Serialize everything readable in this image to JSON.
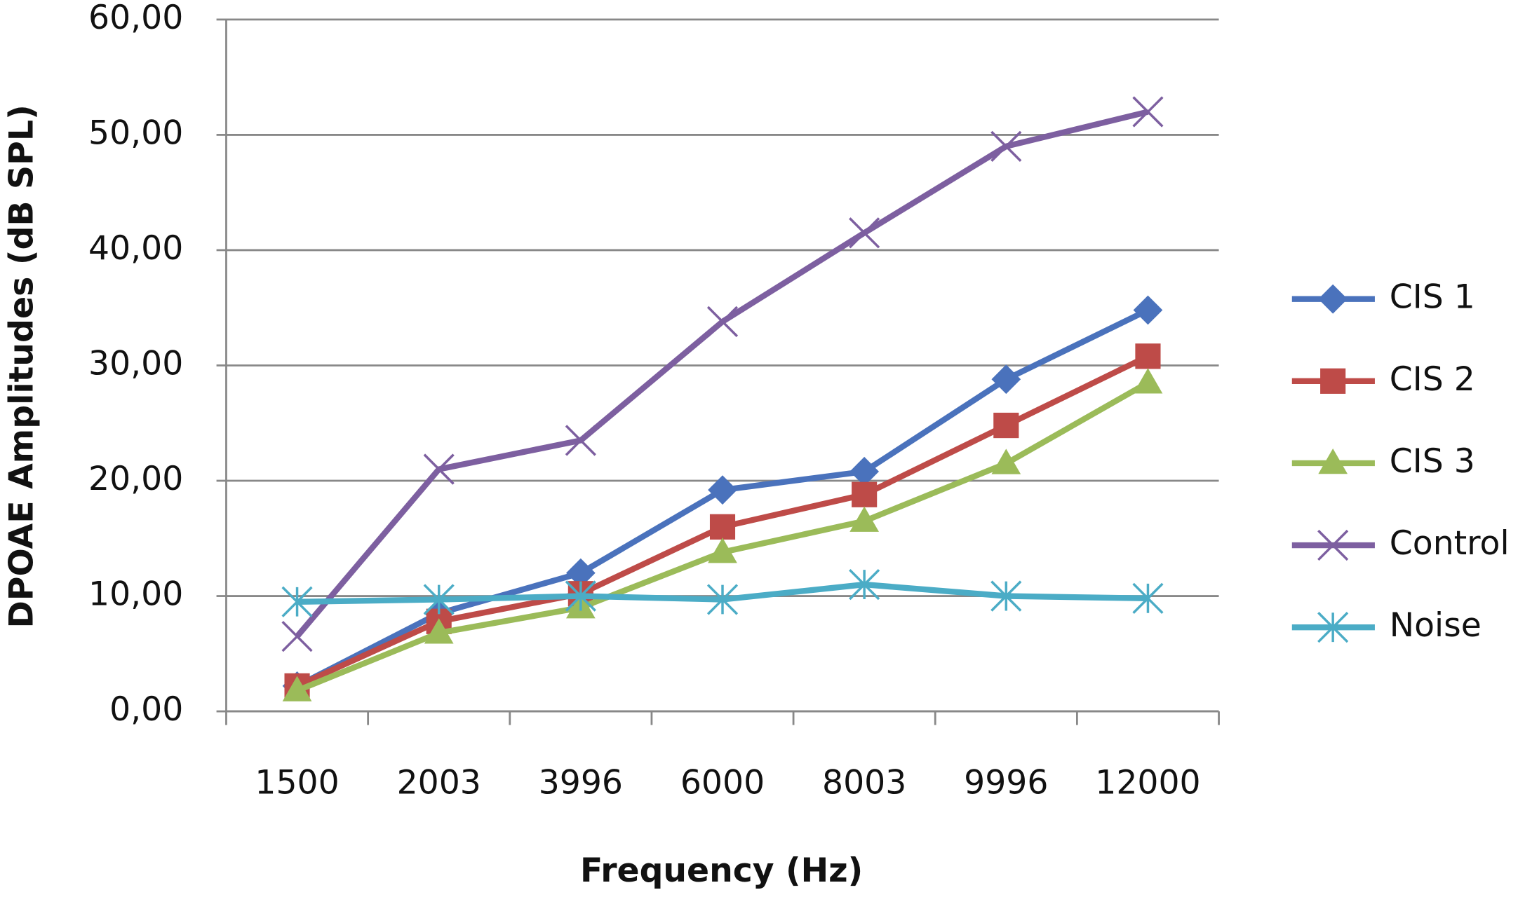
{
  "chart_data": {
    "type": "line",
    "x_label": "Frequency (Hz)",
    "y_label": "DPOAE Amplitudes  (dB SPL)",
    "categories": [
      "1500",
      "2003",
      "3996",
      "6000",
      "8003",
      "9996",
      "12000"
    ],
    "series": [
      {
        "name": "CIS 1",
        "color": "#4a72bc",
        "marker": "diamond",
        "values": [
          2.2,
          8.5,
          12,
          19.2,
          20.8,
          28.8,
          34.8
        ]
      },
      {
        "name": "CIS 2",
        "color": "#be4b48",
        "marker": "square",
        "values": [
          2.2,
          7.8,
          10.2,
          16,
          18.8,
          24.8,
          30.8
        ]
      },
      {
        "name": "CIS 3",
        "color": "#9bbb59",
        "marker": "triangle",
        "values": [
          1.8,
          6.8,
          9,
          13.8,
          16.5,
          21.5,
          28.5
        ]
      },
      {
        "name": "Control",
        "color": "#7d5fa0",
        "marker": "x",
        "values": [
          6.5,
          21,
          23.5,
          33.8,
          41.5,
          49,
          52
        ]
      },
      {
        "name": "Noise",
        "color": "#4bacc6",
        "marker": "star",
        "values": [
          9.5,
          9.7,
          10,
          9.7,
          11,
          10,
          9.8
        ]
      }
    ],
    "ylim": [
      0,
      60
    ],
    "yticks": [
      {
        "value": 0,
        "label": "0,00"
      },
      {
        "value": 10,
        "label": "10,00"
      },
      {
        "value": 20,
        "label": "20,00"
      },
      {
        "value": 30,
        "label": "30,00"
      },
      {
        "value": 40,
        "label": "40,00"
      },
      {
        "value": 50,
        "label": "50,00"
      },
      {
        "value": 60,
        "label": "60,00"
      }
    ],
    "grid": true,
    "legend": "right"
  }
}
